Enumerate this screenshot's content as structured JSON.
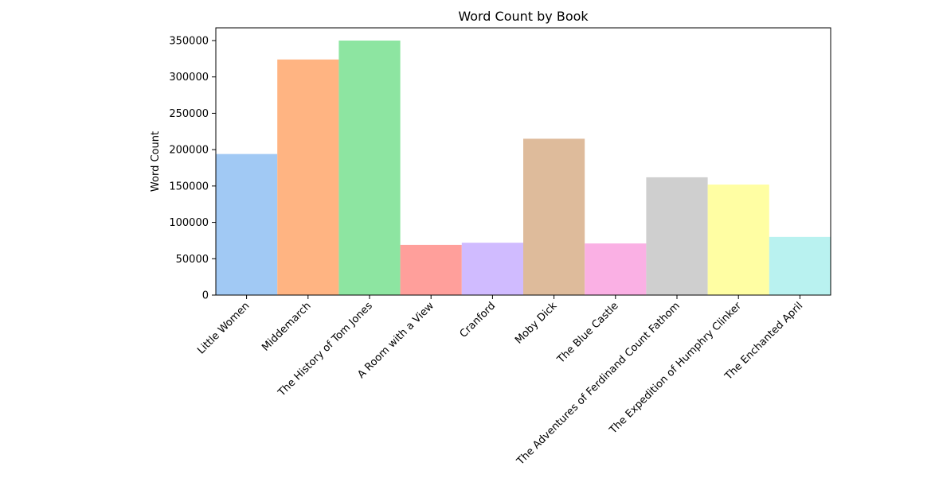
{
  "chart_data": {
    "type": "bar",
    "title": "Word Count by Book",
    "xlabel": "",
    "ylabel": "Word Count",
    "ylim": [
      0,
      367500
    ],
    "yticks": [
      0,
      50000,
      100000,
      150000,
      200000,
      250000,
      300000,
      350000
    ],
    "ytick_labels": [
      "0",
      "50000",
      "100000",
      "150000",
      "200000",
      "250000",
      "300000",
      "350000"
    ],
    "grid": false,
    "legend": "none",
    "categories": [
      "Little Women",
      "Middemarch",
      "The History of Tom Jones",
      "A Room with a View",
      "Cranford",
      "Moby Dick",
      "The Blue Castle",
      "The Adventures of Ferdinand Count Fathom",
      "The Expedition of Humphry Clinker",
      "The Enchanted April"
    ],
    "values": [
      194000,
      324000,
      350000,
      69000,
      72000,
      215000,
      71000,
      162000,
      152000,
      80000
    ],
    "colors": [
      "#a1c9f4",
      "#ffb482",
      "#8de5a1",
      "#ff9f9b",
      "#d0bbff",
      "#debb9b",
      "#fab0e4",
      "#cfcfcf",
      "#fffea3",
      "#b9f2f0"
    ]
  }
}
